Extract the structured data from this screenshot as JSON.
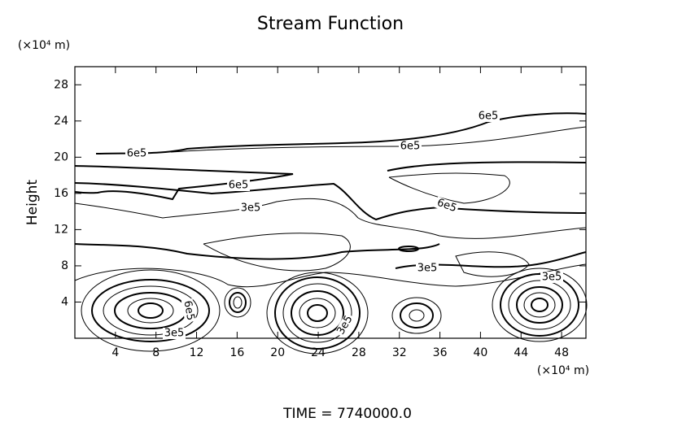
{
  "chart_data": {
    "type": "contour",
    "title": "Stream Function",
    "y_label": "Height",
    "x_unit": "(×10⁴ m)",
    "y_unit": "(×10⁴ m)",
    "footer": "TIME = 7740000.0",
    "xlim": [
      0,
      50.4
    ],
    "ylim": [
      0,
      30
    ],
    "xticks": [
      4,
      8,
      12,
      16,
      20,
      24,
      28,
      32,
      36,
      40,
      44,
      48
    ],
    "yticks": [
      4,
      8,
      12,
      16,
      20,
      24,
      28
    ],
    "contour_labels": [
      "6e5",
      "6e5",
      "6e5",
      "6e5",
      "6e5",
      "3e5",
      "3e5",
      "3e5",
      "6e5",
      "3e5",
      "3e5"
    ]
  }
}
